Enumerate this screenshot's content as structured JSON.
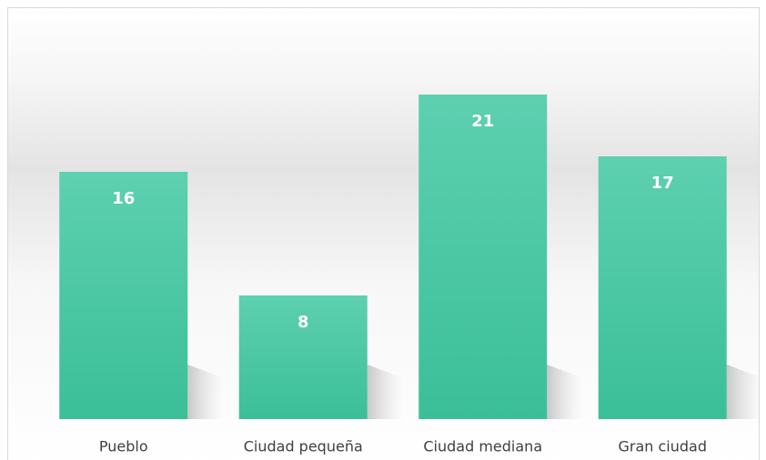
{
  "chart_data": {
    "type": "bar",
    "categories": [
      "Pueblo",
      "Ciudad pequeña",
      "Ciudad mediana",
      "Gran ciudad"
    ],
    "values": [
      16,
      8,
      21,
      17
    ],
    "color": "#45c6a0",
    "ylim": [
      0,
      25
    ]
  }
}
